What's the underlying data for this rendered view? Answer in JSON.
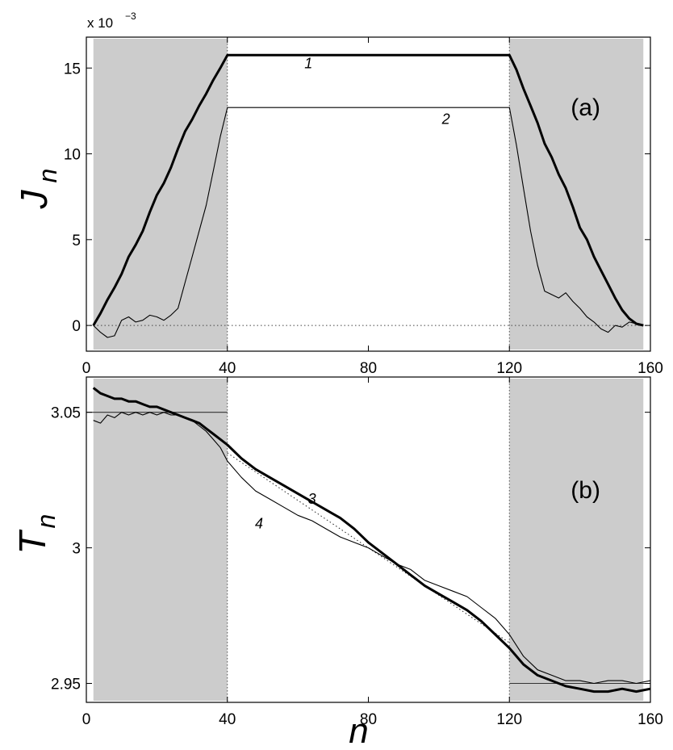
{
  "chart_data": [
    {
      "type": "line",
      "panel_label": "(a)",
      "ylabel_main": "J",
      "ylabel_sub": "n",
      "xlabel": "",
      "scale_note_prefix": "x 10",
      "scale_note_exp": "−3",
      "xlim": [
        0,
        160
      ],
      "ylim": [
        -1.5,
        16.8
      ],
      "xticks": [
        "0",
        "40",
        "80",
        "120",
        "160"
      ],
      "yticks": [
        {
          "value": 0,
          "label": "0"
        },
        {
          "value": 5,
          "label": "5"
        },
        {
          "value": 10,
          "label": "10"
        },
        {
          "value": 15,
          "label": "15"
        }
      ],
      "shaded_regions": [
        [
          2,
          40
        ],
        [
          120,
          158
        ]
      ],
      "vlines": [
        40,
        120
      ],
      "hlines_dotted": [
        0
      ],
      "series": [
        {
          "name": "1",
          "style": "thick",
          "x": [
            2,
            4,
            6,
            8,
            10,
            12,
            14,
            16,
            18,
            20,
            22,
            24,
            26,
            28,
            30,
            32,
            34,
            36,
            38,
            40,
            80,
            120,
            122,
            124,
            126,
            128,
            130,
            132,
            134,
            136,
            138,
            140,
            142,
            144,
            146,
            148,
            150,
            152,
            154,
            156,
            158
          ],
          "y": [
            0,
            0.7,
            1.5,
            2.2,
            3.0,
            4.0,
            4.7,
            5.5,
            6.6,
            7.6,
            8.3,
            9.2,
            10.3,
            11.3,
            12.0,
            12.8,
            13.5,
            14.3,
            15.0,
            15.75,
            15.75,
            15.75,
            14.9,
            13.8,
            12.8,
            11.8,
            10.6,
            9.8,
            8.8,
            8.0,
            6.9,
            5.7,
            5.0,
            4.0,
            3.2,
            2.4,
            1.6,
            0.9,
            0.4,
            0.1,
            0
          ]
        },
        {
          "name": "2",
          "style": "thin",
          "x": [
            2,
            4,
            6,
            8,
            10,
            12,
            14,
            16,
            18,
            20,
            22,
            24,
            26,
            28,
            30,
            32,
            34,
            36,
            38,
            40,
            80,
            120,
            122,
            124,
            126,
            128,
            130,
            132,
            134,
            136,
            138,
            140,
            142,
            144,
            146,
            148,
            150,
            152,
            154,
            156,
            158
          ],
          "y": [
            0,
            -0.4,
            -0.7,
            -0.6,
            0.3,
            0.5,
            0.2,
            0.3,
            0.6,
            0.5,
            0.3,
            0.6,
            1.0,
            2.5,
            4.0,
            5.5,
            7.0,
            9.0,
            11.0,
            12.7,
            12.7,
            12.7,
            10.5,
            8.0,
            5.5,
            3.5,
            2.0,
            1.8,
            1.6,
            1.9,
            1.4,
            1.0,
            0.5,
            0.2,
            -0.2,
            -0.4,
            0,
            -0.1,
            0.2,
            0.1,
            0
          ]
        }
      ],
      "annotations": [
        {
          "text": "1",
          "x": 63,
          "y": 15.0
        },
        {
          "text": "2",
          "x": 102,
          "y": 11.75
        }
      ]
    },
    {
      "type": "line",
      "panel_label": "(b)",
      "ylabel_main": "T",
      "ylabel_sub": "n",
      "xlabel_main": "n",
      "xlim": [
        0,
        160
      ],
      "ylim": [
        2.943,
        3.063
      ],
      "xticks": [
        "0",
        "40",
        "80",
        "120",
        "160"
      ],
      "yticks": [
        {
          "value": 2.95,
          "label": "2.95"
        },
        {
          "value": 3.0,
          "label": "3"
        },
        {
          "value": 3.05,
          "label": "3.05"
        }
      ],
      "shaded_regions": [
        [
          2,
          40
        ],
        [
          120,
          158
        ]
      ],
      "vlines": [
        40,
        120
      ],
      "reference_lines": [
        {
          "x": [
            0,
            40
          ],
          "y": [
            3.05,
            3.05
          ]
        },
        {
          "x": [
            120,
            160
          ],
          "y": [
            2.95,
            2.95
          ]
        }
      ],
      "linear_profile_dotted": {
        "x": [
          40,
          120
        ],
        "y": [
          3.035,
          2.965
        ]
      },
      "series": [
        {
          "name": "3",
          "style": "thick",
          "x": [
            2,
            4,
            6,
            8,
            10,
            12,
            14,
            16,
            18,
            20,
            22,
            24,
            26,
            28,
            30,
            32,
            34,
            36,
            38,
            40,
            44,
            48,
            52,
            56,
            60,
            64,
            68,
            72,
            76,
            80,
            84,
            88,
            92,
            96,
            100,
            104,
            108,
            112,
            116,
            120,
            124,
            128,
            132,
            136,
            140,
            144,
            148,
            152,
            156,
            160
          ],
          "y": [
            3.059,
            3.057,
            3.056,
            3.055,
            3.055,
            3.054,
            3.054,
            3.053,
            3.052,
            3.052,
            3.051,
            3.05,
            3.049,
            3.048,
            3.047,
            3.046,
            3.044,
            3.042,
            3.04,
            3.038,
            3.033,
            3.029,
            3.026,
            3.023,
            3.02,
            3.017,
            3.014,
            3.011,
            3.007,
            3.002,
            2.998,
            2.994,
            2.99,
            2.986,
            2.983,
            2.98,
            2.977,
            2.973,
            2.968,
            2.963,
            2.957,
            2.953,
            2.951,
            2.949,
            2.948,
            2.947,
            2.947,
            2.948,
            2.947,
            2.948
          ]
        },
        {
          "name": "4",
          "style": "thin",
          "x": [
            2,
            4,
            6,
            8,
            10,
            12,
            14,
            16,
            18,
            20,
            22,
            24,
            26,
            28,
            30,
            32,
            34,
            36,
            38,
            40,
            44,
            48,
            52,
            56,
            60,
            64,
            68,
            72,
            76,
            80,
            84,
            88,
            92,
            96,
            100,
            104,
            108,
            112,
            116,
            120,
            124,
            128,
            132,
            136,
            140,
            144,
            148,
            152,
            156,
            160
          ],
          "y": [
            3.047,
            3.046,
            3.049,
            3.048,
            3.05,
            3.049,
            3.05,
            3.049,
            3.05,
            3.049,
            3.05,
            3.049,
            3.049,
            3.048,
            3.047,
            3.045,
            3.043,
            3.04,
            3.037,
            3.032,
            3.026,
            3.021,
            3.018,
            3.015,
            3.012,
            3.01,
            3.007,
            3.004,
            3.002,
            3.0,
            2.997,
            2.994,
            2.992,
            2.988,
            2.986,
            2.984,
            2.982,
            2.978,
            2.974,
            2.968,
            2.96,
            2.955,
            2.953,
            2.951,
            2.951,
            2.95,
            2.951,
            2.951,
            2.95,
            2.951
          ]
        }
      ],
      "annotations": [
        {
          "text": "3",
          "x": 64,
          "y": 3.0162
        },
        {
          "text": "4",
          "x": 49,
          "y": 3.0072
        }
      ]
    }
  ]
}
